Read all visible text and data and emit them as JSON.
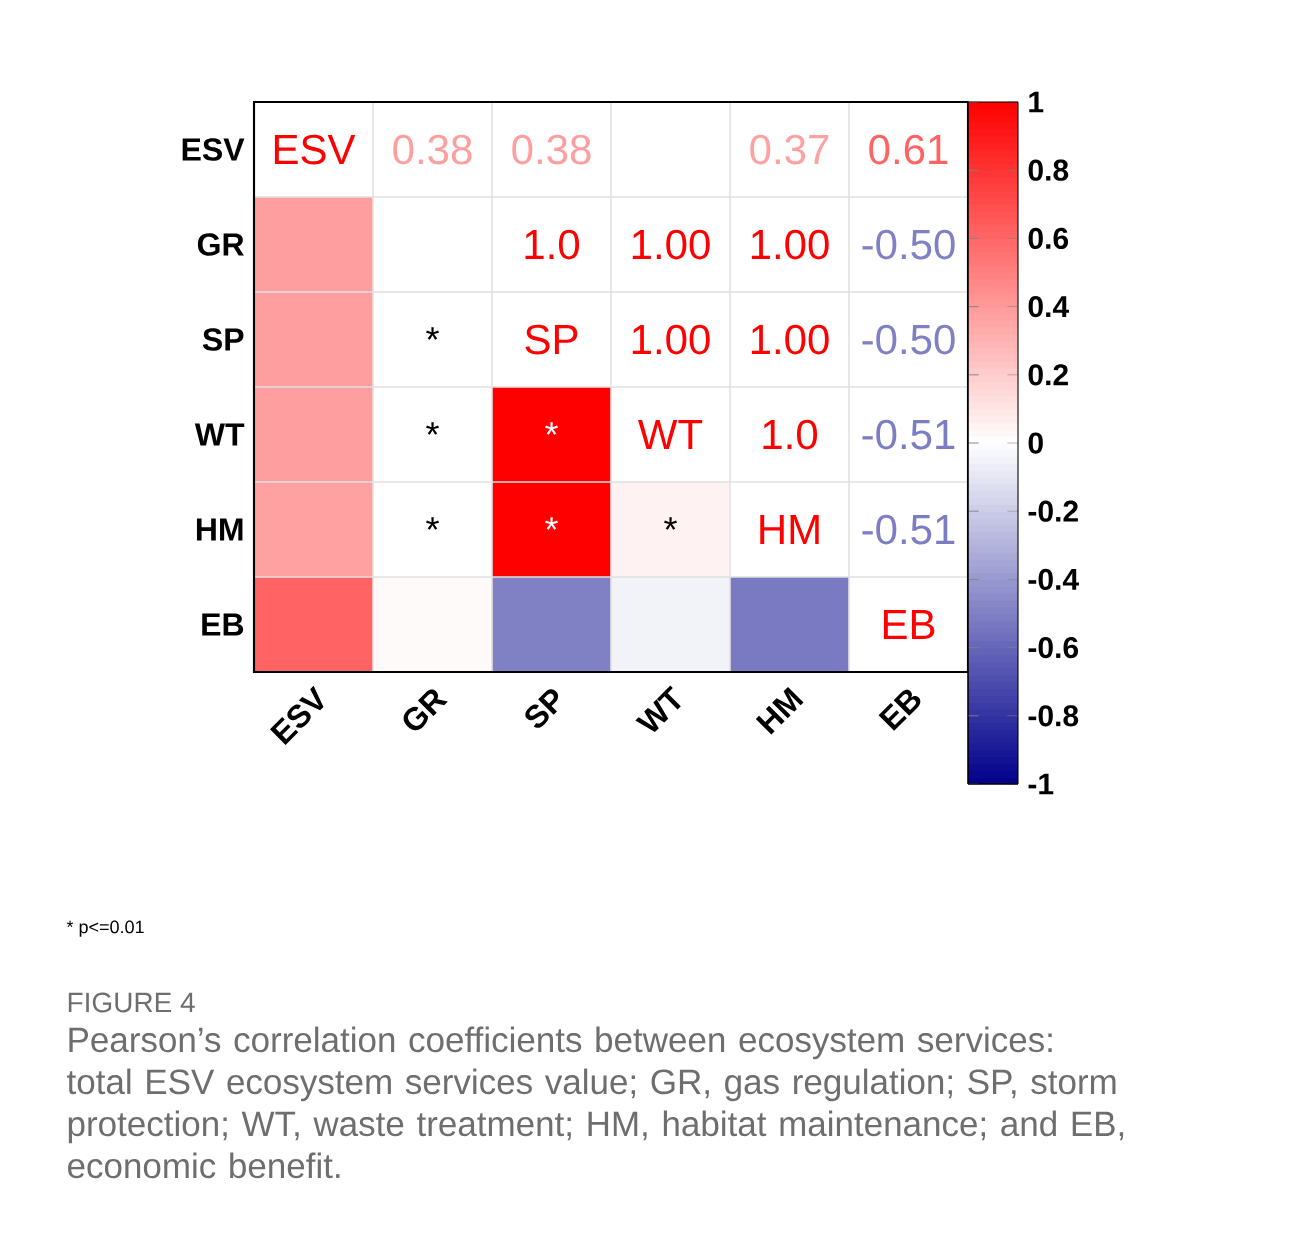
{
  "chart_data": {
    "type": "heatmap",
    "categories": [
      "ESV",
      "GR",
      "SP",
      "WT",
      "HM",
      "EB"
    ],
    "y_categories": [
      "ESV",
      "GR",
      "SP",
      "WT",
      "HM",
      "EB"
    ],
    "cells": [
      [
        null,
        null,
        null,
        null,
        null,
        null
      ],
      [
        0.38,
        null,
        null,
        null,
        null,
        null
      ],
      [
        0.38,
        0,
        null,
        null,
        null,
        null
      ],
      [
        0.38,
        0,
        1.0,
        null,
        null,
        null
      ],
      [
        0.37,
        0,
        1.0,
        0.05,
        null,
        null
      ],
      [
        0.61,
        0.02,
        -0.5,
        -0.05,
        -0.52,
        null
      ]
    ],
    "cell_labels": [
      [
        "ESV",
        "0.38",
        "0.38",
        null,
        "0.37",
        "0.61"
      ],
      [
        null,
        null,
        "1.0",
        "1.00",
        "1.00",
        "-0.50"
      ],
      [
        null,
        "*",
        "SP",
        "1.00",
        "1.00",
        "-0.50"
      ],
      [
        null,
        "*",
        "*",
        "WT",
        "1.0",
        "-0.51"
      ],
      [
        null,
        "*",
        "*",
        "*",
        "HM",
        "-0.51"
      ],
      [
        null,
        null,
        null,
        null,
        null,
        "EB"
      ]
    ],
    "clim": [
      -1,
      1
    ],
    "cticks": [
      1,
      0.8,
      0.6,
      0.4,
      0.2,
      0,
      -0.2,
      -0.4,
      -0.6,
      -0.8,
      -1
    ],
    "grid": true,
    "annotations": [
      "* p<=0.01",
      "FIGURE 4",
      "Pearson’s correlation coefficients between ecosystem services: total ESV ecosystem services value; GR, gas regulation; SP, storm protection; WT, waste treatment; HM, habitat maintenance; and EB, economic benefit."
    ]
  }
}
